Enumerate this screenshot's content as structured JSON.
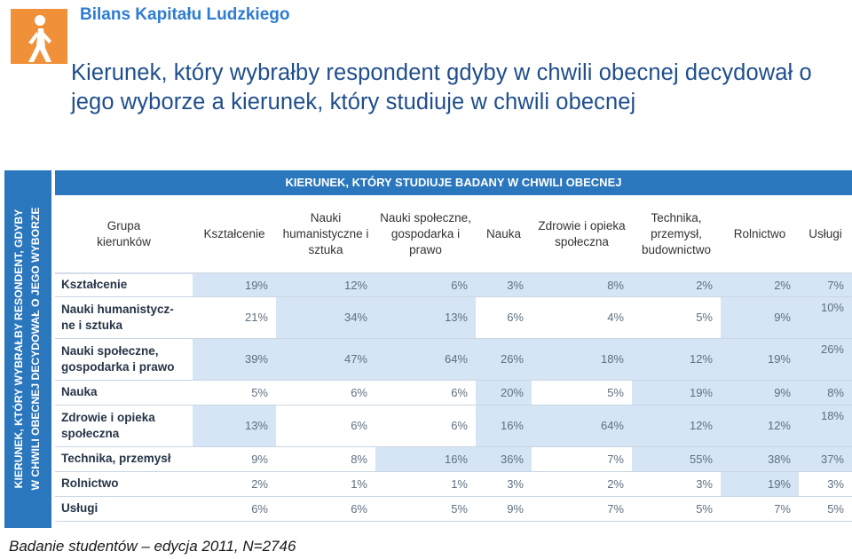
{
  "header": {
    "brand": "Bilans Kapitału Ludzkiego"
  },
  "title": "Kierunek, który wybrałby respondent gdyby w chwili obecnej decydował o jego wyborze a kierunek, który studiuje w chwili obecnej",
  "table": {
    "top_header": "KIERUNEK, KTÓRY STUDIUJE BADANY W CHWILI OBECNEJ",
    "side_header_line1": "KIERUNEK, KTÓRY WYBRAŁBY RESONDENT, GDYBY",
    "side_header_line2": "W CHWILI OBECNEJ DECYDOWAŁ O JEGO WYBORZE",
    "corner_label": "Grupa kierunków",
    "columns": [
      "Kształcenie",
      "Nauki humanistyczne i sztuka",
      "Nauki społeczne, gospodarka i prawo",
      "Nauka",
      "Zdrowie i opieka społeczna",
      "Technika, przemysł, budownictwo",
      "Rolnictwo",
      "Usługi"
    ],
    "rows": [
      {
        "label": "Kształcenie",
        "values": [
          "19%",
          "12%",
          "6%",
          "3%",
          "8%",
          "2%",
          "2%",
          "7%"
        ]
      },
      {
        "label": "Nauki humanistycz-ne i sztuka",
        "values": [
          "21%",
          "34%",
          "13%",
          "6%",
          "4%",
          "5%",
          "9%",
          "10%"
        ]
      },
      {
        "label": "Nauki społeczne, gospodarka i prawo",
        "values": [
          "39%",
          "47%",
          "64%",
          "26%",
          "18%",
          "12%",
          "19%",
          "26%"
        ]
      },
      {
        "label": "Nauka",
        "values": [
          "5%",
          "6%",
          "6%",
          "20%",
          "5%",
          "19%",
          "9%",
          "8%"
        ]
      },
      {
        "label": "Zdrowie i opieka społeczna",
        "values": [
          "13%",
          "6%",
          "6%",
          "16%",
          "64%",
          "12%",
          "12%",
          "18%"
        ]
      },
      {
        "label": "Technika, przemysł",
        "values": [
          "9%",
          "8%",
          "16%",
          "36%",
          "7%",
          "55%",
          "38%",
          "37%"
        ]
      },
      {
        "label": "Rolnictwo",
        "values": [
          "2%",
          "1%",
          "1%",
          "3%",
          "2%",
          "3%",
          "19%",
          "3%"
        ]
      },
      {
        "label": "Usługi",
        "values": [
          "6%",
          "6%",
          "5%",
          "9%",
          "7%",
          "5%",
          "7%",
          "5%"
        ]
      }
    ]
  },
  "footer": "Badanie studentów – edycja 2011, N=2746",
  "colors": {
    "accent_blue": "#2b77bd",
    "title_blue": "#1f4e8c",
    "highlight": "#d5e5f5",
    "logo_orange": "#f0913a"
  },
  "icons": {
    "logo": "walking-person-logo-icon"
  }
}
